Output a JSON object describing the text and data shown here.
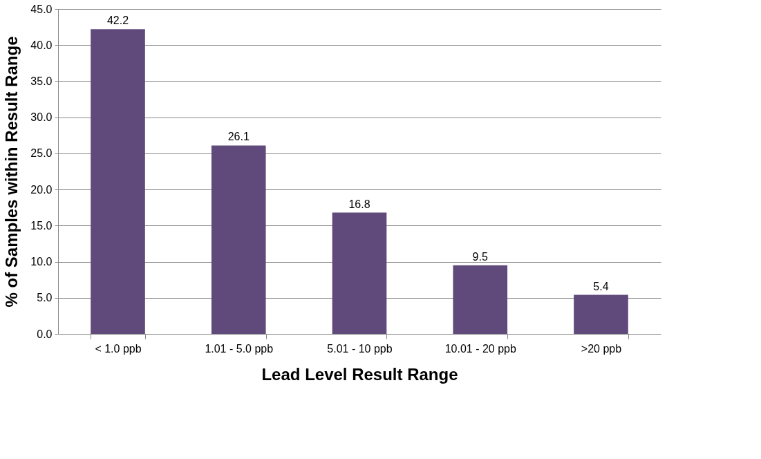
{
  "chart_data": {
    "type": "bar",
    "xlabel": "Lead Level Result Range",
    "ylabel": "% of Samples within Result Range",
    "categories": [
      "< 1.0 ppb",
      "1.01 - 5.0 ppb",
      "5.01 - 10 ppb",
      "10.01 - 20 ppb",
      ">20 ppb"
    ],
    "values": [
      42.2,
      26.1,
      16.8,
      9.5,
      5.4
    ],
    "color": "#604a7b",
    "ylim": [
      0,
      45
    ],
    "yticks": [
      {
        "value": 0,
        "label": "0.0"
      },
      {
        "value": 5,
        "label": "5.0"
      },
      {
        "value": 10,
        "label": "10.0"
      },
      {
        "value": 15,
        "label": "15.0"
      },
      {
        "value": 20,
        "label": "20.0"
      },
      {
        "value": 25,
        "label": "25.0"
      },
      {
        "value": 30,
        "label": "30.0"
      },
      {
        "value": 35,
        "label": "35.0"
      },
      {
        "value": 40,
        "label": "40.0"
      },
      {
        "value": 45,
        "label": "45.0"
      }
    ],
    "grid": "y",
    "data_labels": true
  }
}
